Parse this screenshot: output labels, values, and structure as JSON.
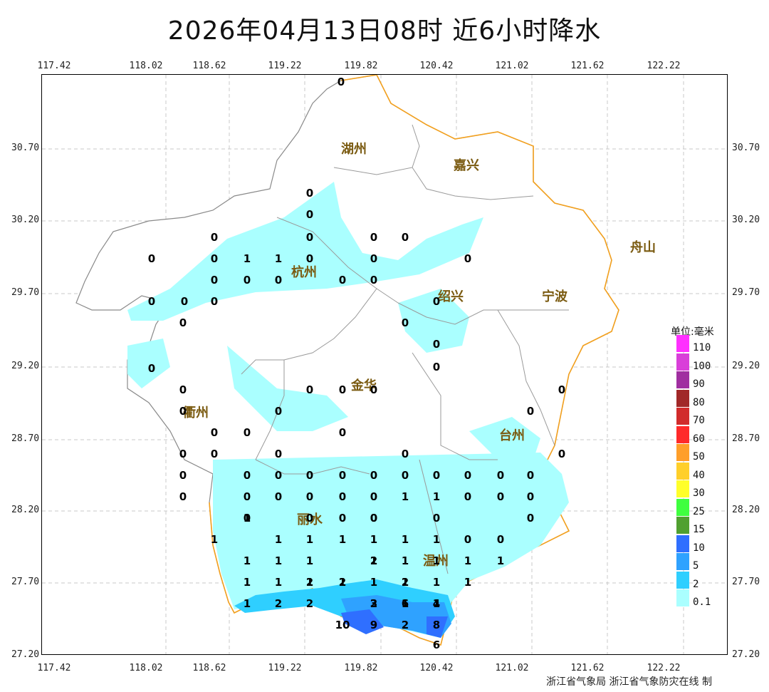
{
  "title": "2026年04月13日08时  近6小时降水",
  "credit": "浙江省气象局 浙江省气象防灾在线 制",
  "lon_ticks": [
    "117.42",
    "118.02",
    "118.62",
    "119.22",
    "119.82",
    "120.42",
    "121.02",
    "121.62",
    "122.22"
  ],
  "lat_ticks": [
    "30.70",
    "30.20",
    "29.70",
    "29.20",
    "28.70",
    "28.20",
    "27.70",
    "27.20"
  ],
  "legend": {
    "title": "单位:毫米",
    "items": [
      {
        "label": "110",
        "color": "#ff30ff"
      },
      {
        "label": "100",
        "color": "#d93fd9"
      },
      {
        "label": "90",
        "color": "#a02ea0"
      },
      {
        "label": "80",
        "color": "#a12828"
      },
      {
        "label": "70",
        "color": "#d12c2c"
      },
      {
        "label": "60",
        "color": "#ff2a2a"
      },
      {
        "label": "50",
        "color": "#ff9f2a"
      },
      {
        "label": "40",
        "color": "#ffcf2a"
      },
      {
        "label": "30",
        "color": "#ffff2a"
      },
      {
        "label": "25",
        "color": "#3fff3f"
      },
      {
        "label": "15",
        "color": "#50a030"
      },
      {
        "label": "10",
        "color": "#2f6fff"
      },
      {
        "label": "5",
        "color": "#2fa2ff"
      },
      {
        "label": "2",
        "color": "#2fcfff"
      },
      {
        "label": "0.1",
        "color": "#aaffff"
      }
    ]
  },
  "cities": [
    {
      "name": "湖州"
    },
    {
      "name": "嘉兴"
    },
    {
      "name": "杭州"
    },
    {
      "name": "绍兴"
    },
    {
      "name": "宁波"
    },
    {
      "name": "金华"
    },
    {
      "name": "衢州"
    },
    {
      "name": "台州"
    },
    {
      "name": "丽水"
    },
    {
      "name": "温州"
    },
    {
      "name": "舟山"
    }
  ],
  "station_values": [
    "0",
    "0",
    "0",
    "0",
    "0",
    "0",
    "0",
    "0",
    "0",
    "1",
    "1",
    "0",
    "0",
    "0",
    "0",
    "0",
    "0",
    "0",
    "0",
    "0",
    "0",
    "0",
    "0",
    "0",
    "0",
    "0",
    "0",
    "0",
    "0",
    "0",
    "0",
    "0",
    "0",
    "0",
    "0",
    "0",
    "0",
    "0",
    "0",
    "0",
    "0",
    "0",
    "0",
    "0",
    "0",
    "0",
    "0",
    "0",
    "0",
    "0",
    "0",
    "0",
    "0",
    "0",
    "0",
    "0",
    "0",
    "0",
    "0",
    "0",
    "0",
    "0",
    "0",
    "0",
    "0",
    "0",
    "0",
    "1",
    "1",
    "0",
    "0",
    "0",
    "1",
    "1",
    "1",
    "1",
    "1",
    "1",
    "1",
    "0",
    "0",
    "0",
    "1",
    "1",
    "1",
    "1",
    "1",
    "1",
    "1",
    "1",
    "1",
    "1",
    "1",
    "1",
    "1",
    "1",
    "2",
    "1",
    "1",
    "1",
    "1",
    "2",
    "2",
    "2",
    "1",
    "1",
    "1",
    "2",
    "2",
    "2",
    "3",
    "6",
    "4",
    "10",
    "9",
    "2",
    "8",
    "6"
  ]
}
